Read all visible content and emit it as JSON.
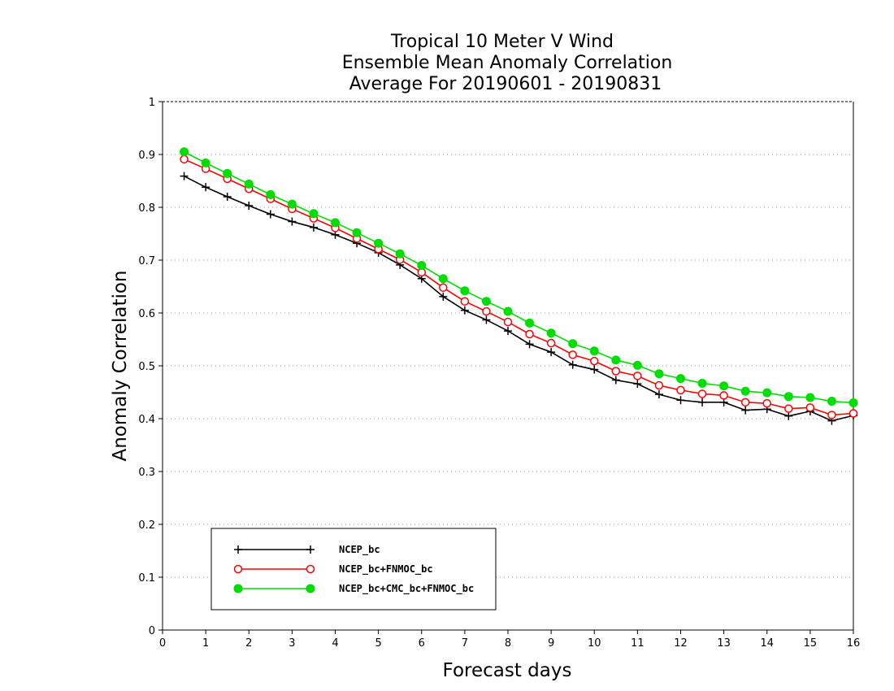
{
  "chart_data": {
    "type": "line",
    "title_lines": [
      "Tropical 10 Meter V Wind",
      "Ensemble Mean Anomaly Correlation",
      "Average For 20190601 - 20190831"
    ],
    "xlabel": "Forecast days",
    "ylabel": "Anomaly Correlation",
    "xlim": [
      0,
      16
    ],
    "ylim": [
      0,
      1
    ],
    "x_ticks": [
      "0",
      "1",
      "2",
      "3",
      "4",
      "5",
      "6",
      "7",
      "8",
      "9",
      "10",
      "11",
      "12",
      "13",
      "14",
      "15",
      "16"
    ],
    "y_ticks": [
      "0",
      "0.1",
      "0.2",
      "0.3",
      "0.4",
      "0.5",
      "0.6",
      "0.7",
      "0.8",
      "0.9",
      "1"
    ],
    "grid": "horizontal dotted",
    "legend_position": "lower-left",
    "x": [
      0.5,
      1.0,
      1.5,
      2.0,
      2.5,
      3.0,
      3.5,
      4.0,
      4.5,
      5.0,
      5.5,
      6.0,
      6.5,
      7.0,
      7.5,
      8.0,
      8.5,
      9.0,
      9.5,
      10.0,
      10.5,
      11.0,
      11.5,
      12.0,
      12.5,
      13.0,
      13.5,
      14.0,
      14.5,
      15.0,
      15.5,
      16.0
    ],
    "series": [
      {
        "name": "NCEP_bc",
        "color": "#000000",
        "marker": "plus",
        "values": [
          0.859,
          0.838,
          0.82,
          0.803,
          0.787,
          0.773,
          0.762,
          0.748,
          0.732,
          0.714,
          0.691,
          0.665,
          0.631,
          0.605,
          0.587,
          0.566,
          0.541,
          0.526,
          0.502,
          0.493,
          0.473,
          0.466,
          0.446,
          0.435,
          0.431,
          0.431,
          0.416,
          0.418,
          0.405,
          0.414,
          0.396,
          0.406
        ]
      },
      {
        "name": "NCEP_bc+FNMOC_bc",
        "color": "#ff0000",
        "marker": "open-circle",
        "values": [
          0.891,
          0.873,
          0.854,
          0.835,
          0.816,
          0.797,
          0.779,
          0.761,
          0.741,
          0.721,
          0.701,
          0.677,
          0.648,
          0.622,
          0.603,
          0.583,
          0.56,
          0.543,
          0.521,
          0.509,
          0.49,
          0.481,
          0.463,
          0.454,
          0.447,
          0.444,
          0.431,
          0.429,
          0.419,
          0.421,
          0.407,
          0.41
        ]
      },
      {
        "name": "NCEP_bc+CMC_bc+FNMOC_bc",
        "color": "#00dd00",
        "marker": "filled-circle",
        "values": [
          0.905,
          0.884,
          0.864,
          0.844,
          0.824,
          0.806,
          0.788,
          0.771,
          0.752,
          0.732,
          0.712,
          0.69,
          0.665,
          0.642,
          0.622,
          0.603,
          0.581,
          0.562,
          0.542,
          0.528,
          0.511,
          0.501,
          0.485,
          0.476,
          0.467,
          0.462,
          0.452,
          0.449,
          0.442,
          0.44,
          0.433,
          0.43
        ]
      }
    ]
  }
}
